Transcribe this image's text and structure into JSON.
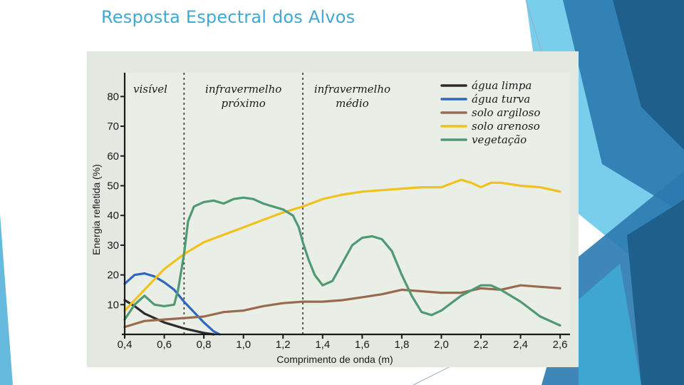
{
  "slide": {
    "title": "Resposta Espectral dos Alvos",
    "accent_colors": [
      "#1f5f8b",
      "#2a7ab0",
      "#3fa9d4",
      "#62c6e8"
    ]
  },
  "chart_data": {
    "type": "line",
    "title": "",
    "xlabel": "Comprimento de onda (m)",
    "ylabel": "Energia refletida (%)",
    "xlim": [
      0.4,
      2.65
    ],
    "ylim": [
      0,
      88
    ],
    "x_ticks": [
      0.4,
      0.6,
      0.8,
      1.0,
      1.2,
      1.4,
      1.6,
      1.8,
      2.0,
      2.2,
      2.4,
      2.6
    ],
    "x_tick_labels": [
      "0,4",
      "0,6",
      "0,8",
      "1,0",
      "1,2",
      "1,4",
      "1,6",
      "1,8",
      "2,0",
      "2,2",
      "2,4",
      "2,6"
    ],
    "y_ticks": [
      10,
      20,
      30,
      40,
      50,
      60,
      70,
      80
    ],
    "y_tick_labels": [
      "10",
      "20",
      "30",
      "40",
      "50",
      "60",
      "70",
      "80"
    ],
    "regions": [
      {
        "label_lines": [
          "visível"
        ],
        "x_start": 0.4,
        "x_end": 0.7
      },
      {
        "label_lines": [
          "infravermelho",
          "próximo"
        ],
        "x_start": 0.7,
        "x_end": 1.3
      },
      {
        "label_lines": [
          "infravermelho",
          "médio"
        ],
        "x_start": 1.3,
        "x_end": 2.65
      }
    ],
    "region_boundaries": [
      0.7,
      1.3
    ],
    "legend_position": "top-right",
    "series": [
      {
        "name": "água limpa",
        "color": "#2b2b2b",
        "points": [
          [
            0.4,
            11.5
          ],
          [
            0.45,
            9.5
          ],
          [
            0.5,
            7
          ],
          [
            0.6,
            4
          ],
          [
            0.7,
            2
          ],
          [
            0.8,
            0.5
          ],
          [
            0.85,
            0
          ]
        ]
      },
      {
        "name": "água turva",
        "color": "#2e67c0",
        "points": [
          [
            0.4,
            17
          ],
          [
            0.45,
            20
          ],
          [
            0.5,
            20.5
          ],
          [
            0.55,
            19.5
          ],
          [
            0.6,
            17.5
          ],
          [
            0.65,
            15
          ],
          [
            0.7,
            11
          ],
          [
            0.75,
            7.5
          ],
          [
            0.8,
            4
          ],
          [
            0.85,
            1
          ],
          [
            0.88,
            0
          ]
        ]
      },
      {
        "name": "solo argiloso",
        "color": "#9a6a4e",
        "points": [
          [
            0.4,
            2.5
          ],
          [
            0.5,
            4.5
          ],
          [
            0.6,
            5
          ],
          [
            0.7,
            5.5
          ],
          [
            0.8,
            6
          ],
          [
            0.9,
            7.5
          ],
          [
            1.0,
            8
          ],
          [
            1.1,
            9.5
          ],
          [
            1.2,
            10.5
          ],
          [
            1.3,
            11
          ],
          [
            1.4,
            11
          ],
          [
            1.5,
            11.5
          ],
          [
            1.6,
            12.5
          ],
          [
            1.7,
            13.5
          ],
          [
            1.8,
            15
          ],
          [
            1.9,
            14.5
          ],
          [
            2.0,
            14
          ],
          [
            2.1,
            14
          ],
          [
            2.2,
            15.5
          ],
          [
            2.3,
            15
          ],
          [
            2.4,
            16.5
          ],
          [
            2.5,
            16
          ],
          [
            2.6,
            15.5
          ]
        ]
      },
      {
        "name": "solo arenoso",
        "color": "#f2c21c",
        "points": [
          [
            0.4,
            8
          ],
          [
            0.5,
            15
          ],
          [
            0.6,
            22
          ],
          [
            0.7,
            27
          ],
          [
            0.8,
            31
          ],
          [
            0.9,
            33.5
          ],
          [
            1.0,
            36
          ],
          [
            1.1,
            38.5
          ],
          [
            1.2,
            41
          ],
          [
            1.3,
            43
          ],
          [
            1.4,
            45.5
          ],
          [
            1.5,
            47
          ],
          [
            1.6,
            48
          ],
          [
            1.7,
            48.5
          ],
          [
            1.8,
            49
          ],
          [
            1.9,
            49.5
          ],
          [
            2.0,
            49.5
          ],
          [
            2.1,
            52
          ],
          [
            2.15,
            51
          ],
          [
            2.2,
            49.5
          ],
          [
            2.25,
            51
          ],
          [
            2.3,
            51
          ],
          [
            2.4,
            50
          ],
          [
            2.5,
            49.5
          ],
          [
            2.6,
            48
          ]
        ]
      },
      {
        "name": "vegetação",
        "color": "#4f9a72",
        "points": [
          [
            0.4,
            5
          ],
          [
            0.45,
            10
          ],
          [
            0.5,
            13
          ],
          [
            0.55,
            10
          ],
          [
            0.6,
            9.5
          ],
          [
            0.65,
            10
          ],
          [
            0.67,
            15
          ],
          [
            0.7,
            27
          ],
          [
            0.72,
            38
          ],
          [
            0.75,
            43
          ],
          [
            0.8,
            44.5
          ],
          [
            0.85,
            45
          ],
          [
            0.9,
            44
          ],
          [
            0.95,
            45.5
          ],
          [
            1.0,
            46
          ],
          [
            1.05,
            45.5
          ],
          [
            1.1,
            44
          ],
          [
            1.15,
            43
          ],
          [
            1.2,
            42
          ],
          [
            1.25,
            40
          ],
          [
            1.28,
            36
          ],
          [
            1.3,
            31
          ],
          [
            1.33,
            25
          ],
          [
            1.36,
            20
          ],
          [
            1.4,
            16.5
          ],
          [
            1.45,
            18
          ],
          [
            1.5,
            24
          ],
          [
            1.55,
            30
          ],
          [
            1.6,
            32.5
          ],
          [
            1.65,
            33
          ],
          [
            1.7,
            32
          ],
          [
            1.75,
            28
          ],
          [
            1.8,
            20
          ],
          [
            1.85,
            13
          ],
          [
            1.9,
            7.5
          ],
          [
            1.95,
            6.5
          ],
          [
            2.0,
            8
          ],
          [
            2.1,
            13
          ],
          [
            2.2,
            16.5
          ],
          [
            2.25,
            16.5
          ],
          [
            2.3,
            15
          ],
          [
            2.4,
            11
          ],
          [
            2.5,
            6
          ],
          [
            2.6,
            3
          ]
        ]
      }
    ]
  }
}
